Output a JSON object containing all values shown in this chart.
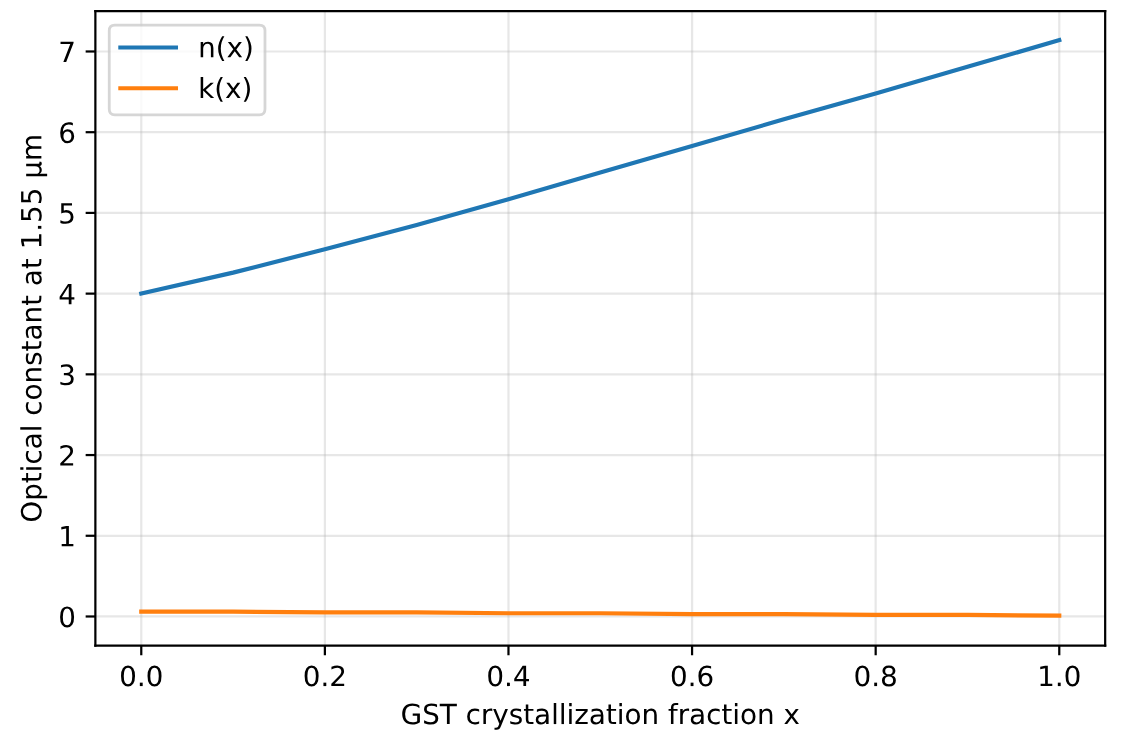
{
  "chart_data": {
    "type": "line",
    "xlabel": "GST crystallization fraction x",
    "ylabel": "Optical constant at 1.55 µm",
    "x": [
      0,
      0.1,
      0.2,
      0.3,
      0.4,
      0.5,
      0.6,
      0.7,
      0.8,
      0.9,
      1.0
    ],
    "series": [
      {
        "name": "n(x)",
        "color": "#1f77b4",
        "values": [
          4.0,
          4.26,
          4.55,
          4.85,
          5.17,
          5.5,
          5.83,
          6.16,
          6.48,
          6.81,
          7.14
        ]
      },
      {
        "name": "k(x)",
        "color": "#ff7f0e",
        "values": [
          0.06,
          0.06,
          0.05,
          0.05,
          0.04,
          0.04,
          0.03,
          0.03,
          0.02,
          0.02,
          0.01
        ]
      }
    ],
    "xlim": [
      -0.05,
      1.05
    ],
    "ylim": [
      -0.36,
      7.5
    ],
    "xticks": [
      {
        "value": 0,
        "label": "0.0"
      },
      0.2,
      0.4,
      0.6,
      0.8,
      {
        "value": 1,
        "label": "1.0"
      }
    ],
    "yticks": [
      0,
      1,
      2,
      3,
      4,
      5,
      6,
      7
    ],
    "grid": true,
    "legend": "top left",
    "marker": "none",
    "line_style": "solid"
  }
}
